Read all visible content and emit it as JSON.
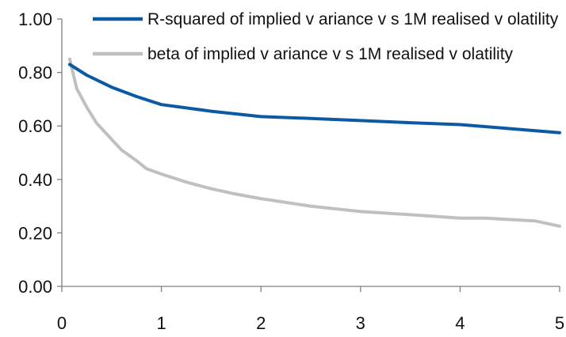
{
  "chart_data": {
    "type": "line",
    "title": "",
    "xlabel": "",
    "ylabel": "",
    "xlim": [
      0,
      5
    ],
    "ylim": [
      0,
      1
    ],
    "grid": false,
    "legend_position": "top",
    "x_ticks": [
      "0",
      "1",
      "2",
      "3",
      "4",
      "5"
    ],
    "y_ticks": [
      "0.00",
      "0.20",
      "0.40",
      "0.60",
      "0.80",
      "1.00"
    ],
    "series": [
      {
        "name": "R-squared of implied v ariance v s  1M  realised v olatility",
        "color": "#0b5aa3",
        "x": [
          0.08,
          0.25,
          0.5,
          0.75,
          1.0,
          1.5,
          2.0,
          2.5,
          3.0,
          3.5,
          4.0,
          4.5,
          5.0
        ],
        "y": [
          0.83,
          0.79,
          0.745,
          0.71,
          0.68,
          0.655,
          0.635,
          0.628,
          0.62,
          0.612,
          0.605,
          0.59,
          0.575
        ]
      },
      {
        "name": "beta of implied v ariance v s  1M  realised v olatility",
        "color": "#c0c0c0",
        "x": [
          0.08,
          0.15,
          0.25,
          0.35,
          0.5,
          0.6,
          0.75,
          0.85,
          1.0,
          1.25,
          1.5,
          1.75,
          2.0,
          2.5,
          3.0,
          3.5,
          4.0,
          4.25,
          4.5,
          4.75,
          5.0
        ],
        "y": [
          0.85,
          0.74,
          0.67,
          0.61,
          0.55,
          0.51,
          0.47,
          0.44,
          0.42,
          0.39,
          0.365,
          0.345,
          0.328,
          0.3,
          0.28,
          0.268,
          0.255,
          0.255,
          0.25,
          0.245,
          0.225
        ]
      }
    ]
  }
}
